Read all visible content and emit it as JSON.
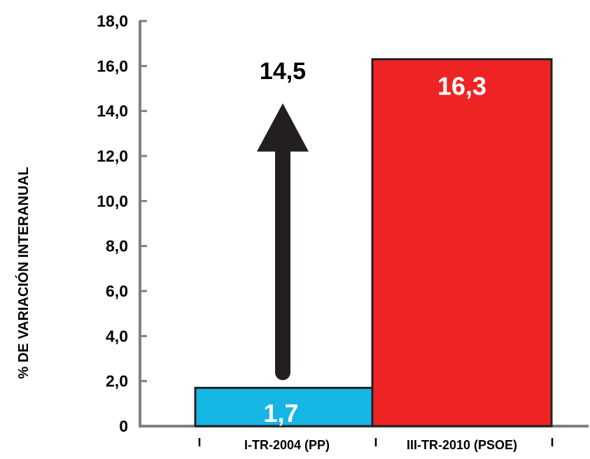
{
  "chart_data": {
    "type": "bar",
    "title": "",
    "xlabel": "",
    "ylabel": "% DE VARIACIÓN INTERANUAL",
    "ylim": [
      0,
      18
    ],
    "y_tick_values": [
      0,
      2,
      4,
      6,
      8,
      10,
      12,
      14,
      16,
      18
    ],
    "y_tick_labels": [
      "0",
      "2,0",
      "4,0",
      "6,0",
      "8,0",
      "10,0",
      "12,0",
      "14,0",
      "16,0",
      "18,0"
    ],
    "grid": false,
    "legend": "none",
    "categories": [
      "I-TR-2004 (PP)",
      "III-TR-2010 (PSOE)"
    ],
    "values": [
      1.7,
      16.3
    ],
    "value_labels": [
      "1,7",
      "16,3"
    ],
    "bar_colors": [
      "#15b6e3",
      "#ee2424"
    ],
    "value_label_colors": [
      "#ffffff",
      "#ffffff"
    ],
    "annotation": {
      "type": "arrow",
      "from_value": 1.7,
      "to_value": 16.3,
      "label": "14,5"
    }
  }
}
